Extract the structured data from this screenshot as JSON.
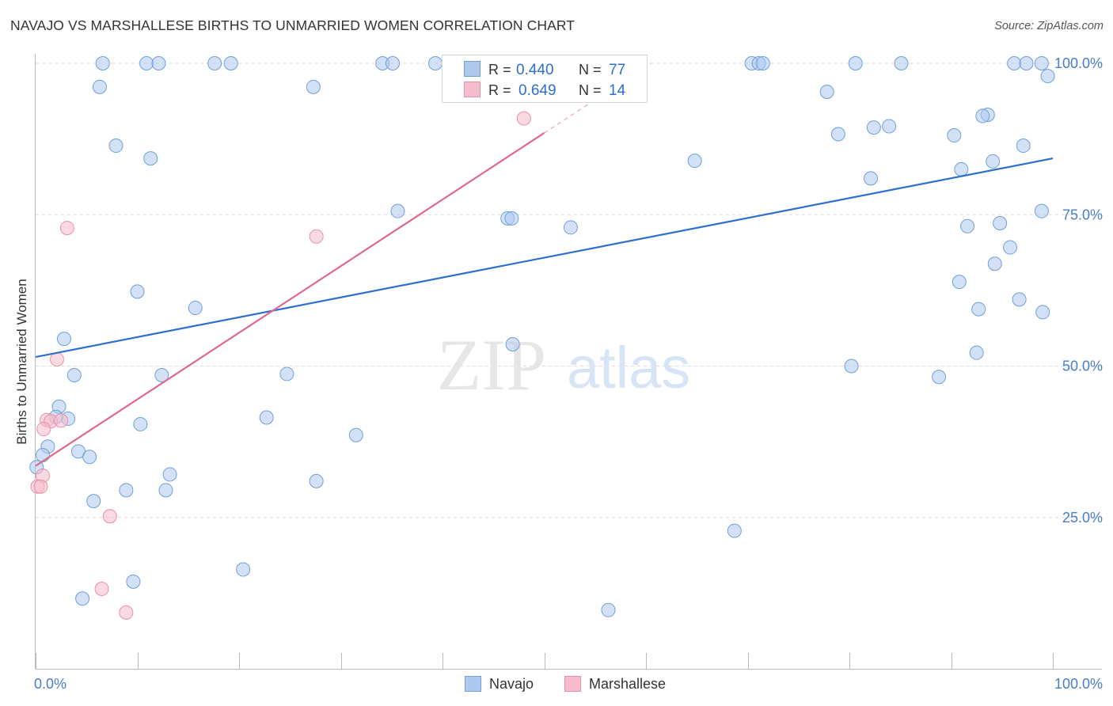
{
  "chart_title": "NAVAJO VS MARSHALLESE BIRTHS TO UNMARRIED WOMEN CORRELATION CHART",
  "source": "Source: ZipAtlas.com",
  "watermark": {
    "zip": "ZIP",
    "atlas": "atlas"
  },
  "colors": {
    "navajo_fill": "#aec8ee",
    "navajo_stroke": "#6f9fd8",
    "navajo_line": "#2c6fcc",
    "marshallese_fill": "#f6bccb",
    "marshallese_stroke": "#e890aa",
    "marshallese_line": "#e06790",
    "tick_label": "#4a7cc9",
    "legend_value": "#2c6fcc"
  },
  "legend_stats": [
    {
      "r_label": "R =",
      "r_value": "0.440",
      "n_label": "N =",
      "n_value": "77"
    },
    {
      "r_label": "R =",
      "r_value": "0.649",
      "n_label": "N =",
      "n_value": "14"
    }
  ],
  "chart_data": {
    "type": "scatter",
    "xlabel": "",
    "ylabel": "Births to Unmarried Women",
    "xlim": [
      0,
      100
    ],
    "ylim": [
      0,
      100
    ],
    "x_tick_labels": [
      "0.0%",
      "100.0%"
    ],
    "y_ticks": [
      25,
      50,
      75,
      100
    ],
    "y_tick_labels": [
      "25.0%",
      "50.0%",
      "75.0%",
      "100.0%"
    ],
    "grid": true,
    "legend_position": "bottom-center",
    "series": [
      {
        "name": "Navajo",
        "r": 0.44,
        "n": 77,
        "trend": {
          "x": [
            0,
            100
          ],
          "y": [
            51.5,
            84.3
          ]
        },
        "points": [
          [
            6.6,
            100
          ],
          [
            10.9,
            100
          ],
          [
            12.1,
            100
          ],
          [
            17.6,
            100
          ],
          [
            19.2,
            100
          ],
          [
            34.1,
            100
          ],
          [
            35.1,
            100
          ],
          [
            39.3,
            100
          ],
          [
            70.4,
            100
          ],
          [
            71.1,
            100
          ],
          [
            71.5,
            100
          ],
          [
            80.6,
            100
          ],
          [
            85.1,
            100
          ],
          [
            96.2,
            100
          ],
          [
            97.4,
            100
          ],
          [
            98.9,
            100
          ],
          [
            6.3,
            96.1
          ],
          [
            27.3,
            96.1
          ],
          [
            77.8,
            95.3
          ],
          [
            99.5,
            97.9
          ],
          [
            93.6,
            91.5
          ],
          [
            93.1,
            91.3
          ],
          [
            83.9,
            89.6
          ],
          [
            82.4,
            89.4
          ],
          [
            78.9,
            88.3
          ],
          [
            90.3,
            88.1
          ],
          [
            7.9,
            86.4
          ],
          [
            11.3,
            84.3
          ],
          [
            64.8,
            83.9
          ],
          [
            94.1,
            83.8
          ],
          [
            97.1,
            86.4
          ],
          [
            91.0,
            82.5
          ],
          [
            82.1,
            81.0
          ],
          [
            35.6,
            75.6
          ],
          [
            46.4,
            74.4
          ],
          [
            46.8,
            74.4
          ],
          [
            52.6,
            72.9
          ],
          [
            91.6,
            73.1
          ],
          [
            94.8,
            73.6
          ],
          [
            98.9,
            75.6
          ],
          [
            95.8,
            69.6
          ],
          [
            94.3,
            66.9
          ],
          [
            10.0,
            62.3
          ],
          [
            15.7,
            59.6
          ],
          [
            90.8,
            63.9
          ],
          [
            92.7,
            59.4
          ],
          [
            96.7,
            61.0
          ],
          [
            99.0,
            58.9
          ],
          [
            2.8,
            54.5
          ],
          [
            46.9,
            53.6
          ],
          [
            92.5,
            52.2
          ],
          [
            80.2,
            50.0
          ],
          [
            3.8,
            48.5
          ],
          [
            12.4,
            48.5
          ],
          [
            24.7,
            48.7
          ],
          [
            88.8,
            48.2
          ],
          [
            2.3,
            43.3
          ],
          [
            3.2,
            41.3
          ],
          [
            2.0,
            41.6
          ],
          [
            10.3,
            40.4
          ],
          [
            22.7,
            41.5
          ],
          [
            31.5,
            38.6
          ],
          [
            1.2,
            36.7
          ],
          [
            4.2,
            35.9
          ],
          [
            5.3,
            35.0
          ],
          [
            0.7,
            35.3
          ],
          [
            13.2,
            32.1
          ],
          [
            27.6,
            31.0
          ],
          [
            8.9,
            29.5
          ],
          [
            12.8,
            29.5
          ],
          [
            5.7,
            27.7
          ],
          [
            68.7,
            22.8
          ],
          [
            20.4,
            16.4
          ],
          [
            9.6,
            14.4
          ],
          [
            4.6,
            11.6
          ],
          [
            56.3,
            9.7
          ],
          [
            0.1,
            33.3
          ]
        ]
      },
      {
        "name": "Marshallese",
        "r": 0.649,
        "n": 14,
        "trend": {
          "x": [
            0,
            50
          ],
          "y": [
            33.5,
            88.5
          ],
          "dashed_to": {
            "x": 60.5,
            "y": 100
          }
        },
        "points": [
          [
            48.0,
            90.9
          ],
          [
            3.1,
            72.8
          ],
          [
            27.6,
            71.4
          ],
          [
            2.1,
            51.1
          ],
          [
            1.1,
            41.1
          ],
          [
            1.5,
            40.9
          ],
          [
            2.5,
            41.0
          ],
          [
            0.8,
            39.6
          ],
          [
            0.7,
            31.9
          ],
          [
            0.2,
            30.1
          ],
          [
            0.5,
            30.1
          ],
          [
            7.3,
            25.2
          ],
          [
            6.5,
            13.2
          ],
          [
            8.9,
            9.3
          ]
        ]
      }
    ]
  }
}
